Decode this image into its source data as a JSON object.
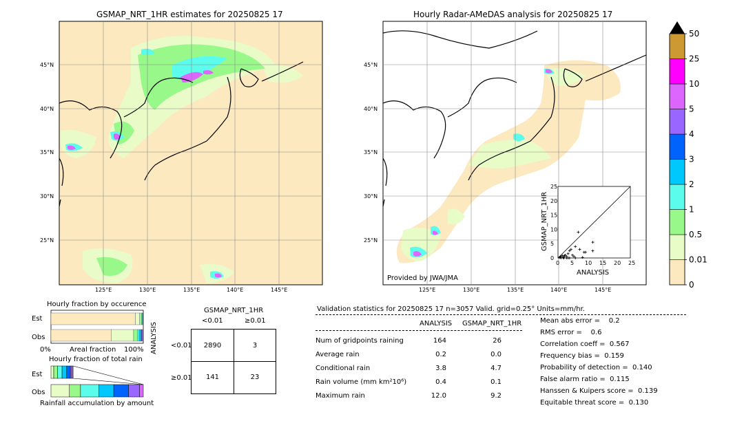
{
  "left_map": {
    "title": "GSMAP_NRT_1HR estimates for 20250825 17",
    "lat_labels": [
      "45°N",
      "40°N",
      "35°N",
      "30°N",
      "25°N"
    ],
    "lon_labels": [
      "125°E",
      "130°E",
      "135°E",
      "140°E",
      "145°E"
    ]
  },
  "right_map": {
    "title": "Hourly Radar-AMeDAS analysis for 20250825 17",
    "lat_labels": [
      "45°N",
      "40°N",
      "35°N",
      "30°N",
      "25°N"
    ],
    "lon_labels": [
      "125°E",
      "130°E",
      "135°E",
      "140°E",
      "145°E"
    ],
    "credit": "Provided by JWA/JMA"
  },
  "colorbar": {
    "levels": [
      "0",
      "0.01",
      "0.5",
      "1",
      "2",
      "3",
      "4",
      "5",
      "10",
      "25",
      "50"
    ],
    "colors": [
      "#fde9c0",
      "#e8fcc8",
      "#98f98a",
      "#5cfcec",
      "#00c8fc",
      "#0064fc",
      "#9966ff",
      "#dd66ff",
      "#ff00ff",
      "#cc9933"
    ]
  },
  "fraction_occurrence": {
    "title": "Hourly fraction by occurence",
    "rows": [
      "Est",
      "Obs"
    ],
    "xlabel_left": "0%",
    "xlabel_mid": "Areal fraction",
    "xlabel_right": "100%"
  },
  "fraction_total": {
    "title": "Hourly fraction of total rain",
    "rows": [
      "Est",
      "Obs"
    ],
    "xlabel": "Rainfall accumulation by amount"
  },
  "contingency": {
    "col_header": "GSMAP_NRT_1HR",
    "col_labels": [
      "<0.01",
      "≥0.01"
    ],
    "row_header": "ANALYSIS",
    "row_labels": [
      "<0.01",
      "≥0.01"
    ],
    "cells": [
      [
        "2890",
        "3"
      ],
      [
        "141",
        "23"
      ]
    ]
  },
  "validation": {
    "header": "Validation statistics for 20250825 17  n=3057 Valid. grid=0.25°  Units=mm/hr.",
    "columns": [
      "ANALYSIS",
      "GSMAP_NRT_1HR"
    ],
    "rows": [
      {
        "label": "Num of gridpoints raining",
        "analysis": "164",
        "gsmap": "26"
      },
      {
        "label": "Average rain",
        "analysis": "0.2",
        "gsmap": "0.0"
      },
      {
        "label": "Conditional rain",
        "analysis": "3.8",
        "gsmap": "4.7"
      },
      {
        "label": "Rain volume (mm km²10⁶)",
        "analysis": "0.4",
        "gsmap": "0.1"
      },
      {
        "label": "Maximum rain",
        "analysis": "12.0",
        "gsmap": "9.2"
      }
    ],
    "scores": [
      "Mean abs error =    0.2",
      "RMS error =    0.6",
      "Correlation coeff =  0.567",
      "Frequency bias =  0.159",
      "Probability of detection =  0.140",
      "False alarm ratio =  0.115",
      "Hanssen & Kuipers score =  0.139",
      "Equitable threat score =  0.130"
    ]
  },
  "chart_data": [
    {
      "type": "scatter",
      "title": "",
      "xlabel": "ANALYSIS",
      "ylabel": "GSMAP_NRT_1HR",
      "xlim": [
        0,
        25
      ],
      "ylim": [
        0,
        25
      ],
      "ticks": [
        "0",
        "5",
        "10",
        "15",
        "20",
        "25"
      ],
      "x": [
        0.5,
        1.0,
        1.5,
        2.0,
        2.5,
        3.0,
        3.5,
        4.0,
        4.5,
        5.0,
        6.0,
        7.0,
        3.0,
        4.0,
        5.5,
        6.0,
        7.5,
        9.0,
        12.0,
        12.0,
        9.5,
        8.5,
        2.0,
        1.0,
        3.5,
        0.8,
        2.2,
        1.8
      ],
      "y": [
        0.2,
        0.5,
        0.8,
        0.3,
        1.0,
        0.5,
        1.5,
        2.5,
        3.0,
        1.0,
        4.0,
        9.0,
        0.0,
        0.0,
        0.5,
        0.0,
        3.0,
        2.0,
        5.5,
        2.5,
        2.0,
        0.2,
        0.0,
        0.0,
        0.0,
        0.3,
        0.8,
        0.1
      ]
    },
    {
      "type": "bar",
      "title": "Hourly fraction by occurence",
      "categories": [
        "Est",
        "Obs"
      ],
      "series": [
        {
          "values": [
            0.915,
            0.655
          ]
        },
        {
          "values": [
            0.045,
            0.24
          ]
        },
        {
          "values": [
            0.02,
            0.04
          ]
        },
        {
          "values": [
            0.01,
            0.02
          ]
        },
        {
          "values": [
            0.005,
            0.02
          ]
        },
        {
          "values": [
            0.003,
            0.01
          ]
        },
        {
          "values": [
            0.002,
            0.008
          ]
        }
      ],
      "colors": [
        "#fde9c0",
        "#e8fcc8",
        "#98f98a",
        "#5cfcec",
        "#00c8fc",
        "#0064fc",
        "#9966ff"
      ]
    },
    {
      "type": "bar",
      "title": "Hourly fraction of total rain",
      "categories": [
        "Est",
        "Obs"
      ],
      "series": [
        {
          "values": [
            0.03,
            0.2
          ]
        },
        {
          "values": [
            0.04,
            0.12
          ]
        },
        {
          "values": [
            0.05,
            0.2
          ]
        },
        {
          "values": [
            0.05,
            0.16
          ]
        },
        {
          "values": [
            0.04,
            0.16
          ]
        },
        {
          "values": [
            0.02,
            0.12
          ]
        },
        {
          "values": [
            0.01,
            0.04
          ]
        }
      ],
      "colors": [
        "#e8fcc8",
        "#98f98a",
        "#5cfcec",
        "#00c8fc",
        "#0064fc",
        "#9966ff",
        "#dd66ff"
      ]
    }
  ]
}
